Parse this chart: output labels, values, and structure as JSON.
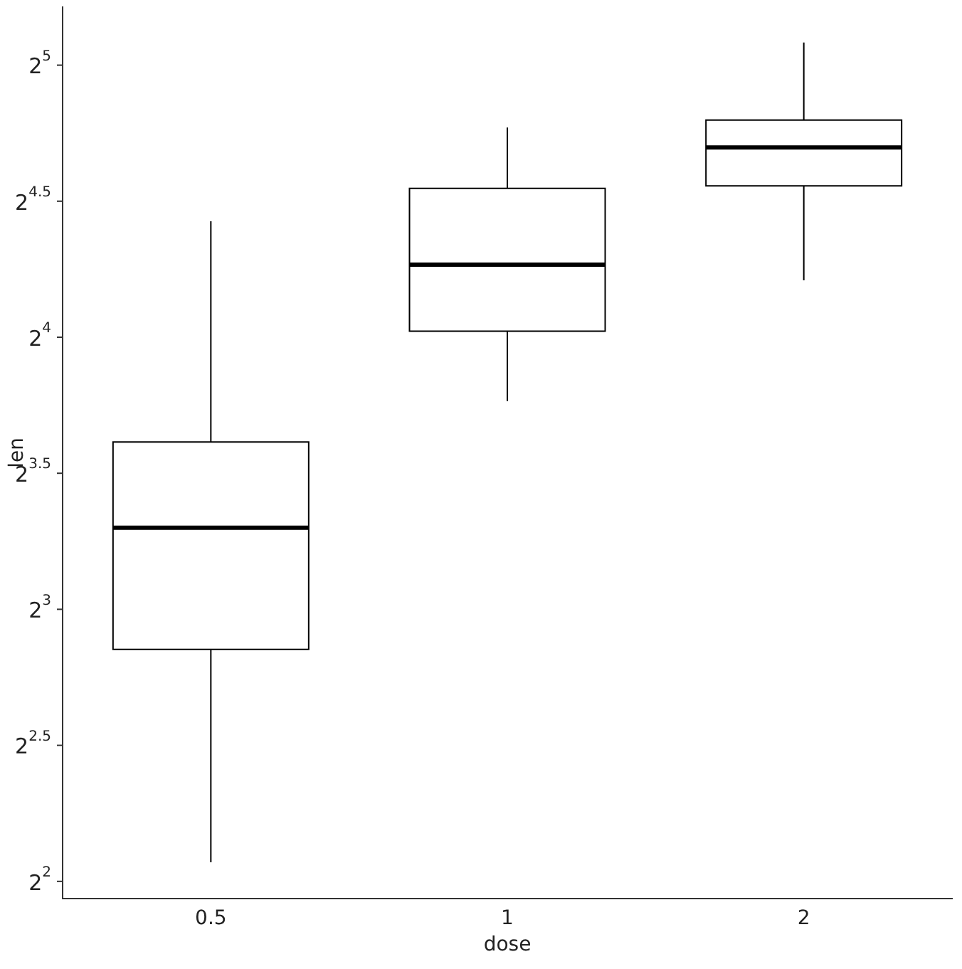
{
  "chart_data": {
    "type": "box",
    "xlabel": "dose",
    "ylabel": "len",
    "categories": [
      "0.5",
      "1",
      "2"
    ],
    "boxes": [
      {
        "low": 4.2,
        "q1": 7.225,
        "median": 9.85,
        "q3": 12.25,
        "high": 21.5
      },
      {
        "low": 13.6,
        "q1": 16.25,
        "median": 19.25,
        "q3": 23.375,
        "high": 27.3
      },
      {
        "low": 18.5,
        "q1": 23.525,
        "median": 25.95,
        "q3": 27.825,
        "high": 33.9
      }
    ],
    "color": "#000000",
    "log": "y",
    "ylim": [
      3.83,
      37.1
    ],
    "yticks": [
      {
        "value": 4,
        "label": "2$^{2}$"
      },
      {
        "value": 5.657,
        "label": "2$^{2.5}$"
      },
      {
        "value": 8,
        "label": "2$^{3}$"
      },
      {
        "value": 11.314,
        "label": "2$^{3.5}$"
      },
      {
        "value": 16,
        "label": "2$^{4}$"
      },
      {
        "value": 22.627,
        "label": "2$^{4.5}$"
      },
      {
        "value": 32,
        "label": "2$^{5}$"
      }
    ],
    "grid": false
  }
}
